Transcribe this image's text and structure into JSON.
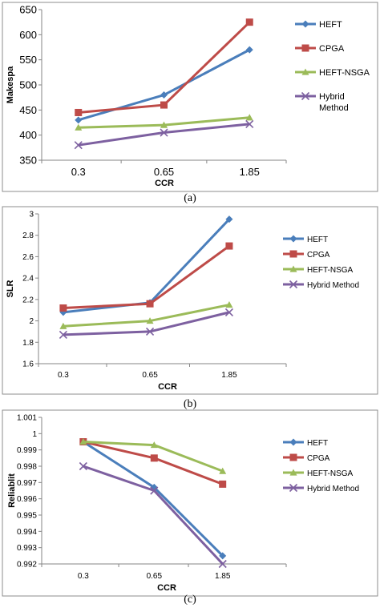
{
  "colors": {
    "HEFT": "#4a7ebb",
    "CPGA": "#be4b48",
    "HEFT-NSGA": "#9bbb59",
    "Hybrid": "#7d60a0"
  },
  "chart_data": [
    {
      "type": "line",
      "caption": "(a)",
      "xlabel": "CCR",
      "ylabel": "Makespa",
      "categories": [
        "0.3",
        "0.65",
        "1.85"
      ],
      "ylim": [
        350,
        650
      ],
      "yticks": [
        "350",
        "400",
        "450",
        "500",
        "550",
        "600",
        "650"
      ],
      "grid": false,
      "legend_position": "right",
      "series": [
        {
          "name": "HEFT",
          "marker": "diamond",
          "values": [
            430,
            480,
            570
          ]
        },
        {
          "name": "CPGA",
          "marker": "square",
          "values": [
            445,
            460,
            625
          ]
        },
        {
          "name": "HEFT-NSGA",
          "marker": "triangle",
          "values": [
            415,
            420,
            435
          ]
        },
        {
          "name": "Hybrid Method",
          "name_lines": [
            "Hybrid",
            "Method"
          ],
          "marker": "x",
          "values": [
            380,
            405,
            422
          ]
        }
      ]
    },
    {
      "type": "line",
      "caption": "(b)",
      "xlabel": "CCR",
      "ylabel": "SLR",
      "categories": [
        "0.3",
        "0.65",
        "1.85"
      ],
      "ylim": [
        1.6,
        3
      ],
      "yticks": [
        "1.6",
        "1.8",
        "2",
        "2.2",
        "2.4",
        "2.6",
        "2.8",
        "3"
      ],
      "grid": false,
      "legend_position": "right",
      "series": [
        {
          "name": "HEFT",
          "marker": "diamond",
          "values": [
            2.08,
            2.17,
            2.95
          ]
        },
        {
          "name": "CPGA",
          "marker": "square",
          "values": [
            2.12,
            2.16,
            2.7
          ]
        },
        {
          "name": "HEFT-NSGA",
          "marker": "triangle",
          "values": [
            1.95,
            2.0,
            2.15
          ]
        },
        {
          "name": "Hybrid Method",
          "marker": "x",
          "values": [
            1.87,
            1.9,
            2.08
          ]
        }
      ]
    },
    {
      "type": "line",
      "caption": "(c)",
      "xlabel": "CCR",
      "ylabel": "Reliablit",
      "categories": [
        "0.3",
        "0.65",
        "1.85"
      ],
      "ylim": [
        0.992,
        1.001
      ],
      "yticks": [
        "0.992",
        "0.993",
        "0.994",
        "0.995",
        "0.996",
        "0.997",
        "0.998",
        "0.999",
        "1",
        "1.001"
      ],
      "grid": false,
      "legend_position": "right",
      "series": [
        {
          "name": "HEFT",
          "marker": "diamond",
          "values": [
            0.9995,
            0.9967,
            0.9925
          ]
        },
        {
          "name": "CPGA",
          "marker": "square",
          "values": [
            0.9995,
            0.9985,
            0.9969
          ]
        },
        {
          "name": "HEFT-NSGA",
          "marker": "triangle",
          "values": [
            0.9995,
            0.9993,
            0.9977
          ]
        },
        {
          "name": "Hybrid Method",
          "marker": "x",
          "values": [
            0.998,
            0.9965,
            0.992
          ]
        }
      ]
    }
  ]
}
